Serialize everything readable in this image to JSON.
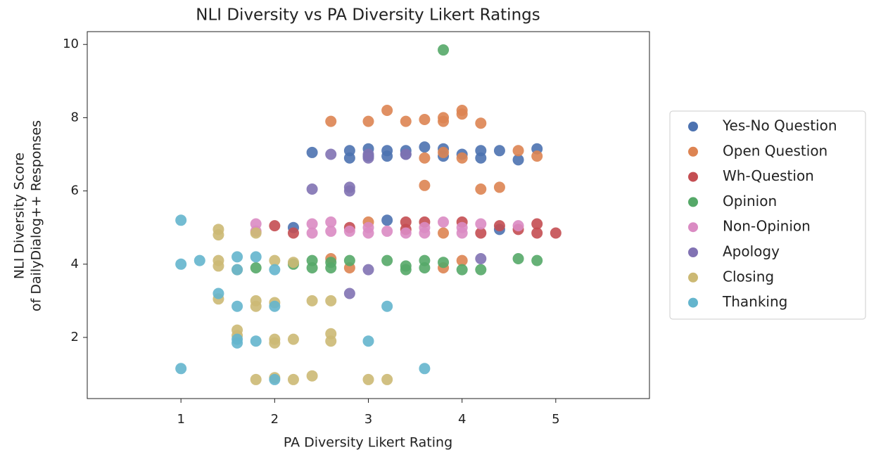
{
  "chart_data": {
    "type": "scatter",
    "title": "NLI Diversity vs PA Diversity Likert Ratings",
    "x_label": "PA Diversity Likert Rating",
    "y_label": [
      "NLI Diversity Score",
      "of DailyDialog++ Responses"
    ],
    "xlim": [
      0,
      6
    ],
    "ylim": [
      0.33,
      10.35
    ],
    "xticks": [
      1,
      2,
      3,
      4,
      5
    ],
    "yticks": [
      2,
      4,
      6,
      8,
      10
    ],
    "grid": false,
    "legend": "outside-right",
    "series": [
      {
        "name": "Yes-No Question",
        "color": "#4c72b0",
        "x": [
          2.4,
          2.8,
          2.8,
          3.0,
          3.0,
          3.2,
          3.2,
          3.4,
          3.4,
          3.6,
          3.8,
          3.8,
          4.0,
          4.2,
          4.2,
          4.4,
          4.6,
          4.8,
          2.2,
          3.2,
          4.4
        ],
        "y": [
          7.05,
          7.1,
          6.9,
          7.15,
          6.95,
          7.1,
          6.95,
          7.1,
          7.0,
          7.2,
          7.15,
          6.95,
          7.0,
          7.1,
          6.9,
          7.1,
          6.85,
          7.15,
          5.0,
          5.2,
          4.95
        ]
      },
      {
        "name": "Open Question",
        "color": "#dd8452",
        "x": [
          2.6,
          3.0,
          3.2,
          3.4,
          3.6,
          3.8,
          3.8,
          4.0,
          4.0,
          4.2,
          3.8,
          3.6,
          4.0,
          4.6,
          4.8,
          3.6,
          4.2,
          4.4,
          3.0,
          2.6,
          2.8,
          3.8,
          4.0,
          3.8
        ],
        "y": [
          7.9,
          7.9,
          8.2,
          7.9,
          7.95,
          8.0,
          7.9,
          8.2,
          8.1,
          7.85,
          7.05,
          6.9,
          6.9,
          7.1,
          6.95,
          6.15,
          6.05,
          6.1,
          5.15,
          4.15,
          3.9,
          3.9,
          4.1,
          4.85
        ]
      },
      {
        "name": "Wh-Question",
        "color": "#c44e52",
        "x": [
          2.0,
          2.2,
          2.8,
          3.4,
          3.6,
          4.0,
          4.2,
          4.4,
          4.6,
          4.8,
          4.8,
          5.0,
          3.4
        ],
        "y": [
          5.05,
          4.85,
          5.0,
          5.15,
          5.15,
          5.15,
          4.85,
          5.05,
          4.95,
          5.1,
          4.85,
          4.85,
          4.95
        ]
      },
      {
        "name": "Opinion",
        "color": "#55a868",
        "x": [
          3.8,
          1.8,
          2.2,
          2.4,
          2.4,
          2.6,
          2.6,
          2.8,
          3.2,
          3.4,
          3.4,
          3.6,
          3.6,
          3.8,
          4.0,
          4.2,
          4.6,
          4.8
        ],
        "y": [
          9.85,
          3.9,
          4.0,
          4.1,
          3.9,
          4.05,
          3.9,
          4.1,
          4.1,
          3.95,
          3.85,
          4.1,
          3.9,
          4.05,
          3.85,
          3.85,
          4.15,
          4.1
        ]
      },
      {
        "name": "Non-Opinion",
        "color": "#da8bc3",
        "x": [
          1.8,
          1.8,
          2.4,
          2.4,
          2.6,
          2.6,
          2.8,
          3.0,
          3.0,
          3.2,
          3.4,
          3.6,
          3.6,
          3.8,
          4.0,
          4.0,
          4.2,
          4.6
        ],
        "y": [
          5.1,
          4.9,
          5.1,
          4.85,
          5.15,
          4.9,
          4.9,
          5.0,
          4.85,
          4.9,
          4.85,
          5.0,
          4.85,
          5.15,
          5.0,
          4.85,
          5.1,
          5.05
        ]
      },
      {
        "name": "Apology",
        "color": "#8172b3",
        "x": [
          2.4,
          2.6,
          2.8,
          2.8,
          3.0,
          3.0,
          3.4,
          2.8,
          3.0,
          4.2
        ],
        "y": [
          6.05,
          7.0,
          6.1,
          6.0,
          7.0,
          6.9,
          7.0,
          3.2,
          3.85,
          4.15
        ]
      },
      {
        "name": "Closing",
        "color": "#ccb974",
        "x": [
          1.4,
          1.4,
          1.4,
          1.4,
          1.6,
          1.4,
          1.6,
          1.6,
          1.8,
          1.8,
          2.0,
          2.0,
          2.0,
          2.2,
          2.2,
          2.4,
          2.6,
          2.6,
          2.6,
          1.8,
          2.0,
          2.2,
          2.4,
          3.0,
          3.2,
          2.0,
          1.8
        ],
        "y": [
          4.95,
          4.8,
          4.1,
          3.95,
          3.85,
          3.05,
          2.2,
          2.05,
          3.0,
          2.85,
          2.95,
          1.95,
          1.85,
          1.95,
          4.05,
          3.0,
          3.0,
          2.1,
          1.9,
          0.85,
          0.9,
          0.85,
          0.95,
          0.85,
          0.85,
          4.1,
          4.85
        ]
      },
      {
        "name": "Thanking",
        "color": "#64b5cd",
        "x": [
          1.0,
          1.0,
          1.2,
          1.4,
          1.6,
          1.6,
          1.8,
          2.0,
          1.6,
          2.0,
          1.6,
          1.6,
          1.8,
          3.0,
          3.2,
          2.0,
          1.0,
          3.6
        ],
        "y": [
          5.2,
          4.0,
          4.1,
          3.2,
          4.2,
          3.85,
          4.2,
          3.85,
          2.85,
          2.85,
          1.95,
          1.85,
          1.9,
          1.9,
          2.85,
          0.85,
          1.15,
          1.15
        ]
      }
    ]
  }
}
